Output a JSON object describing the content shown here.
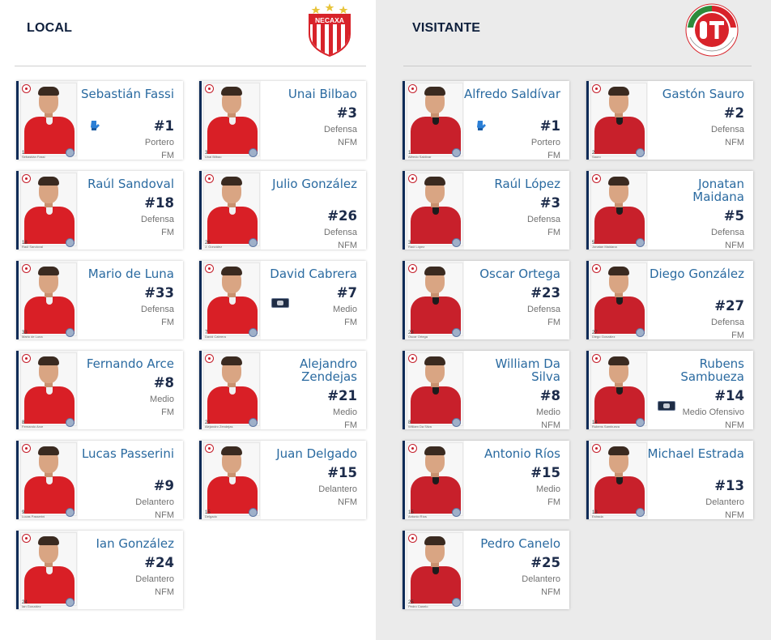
{
  "local": {
    "title": "LOCAL",
    "logo_name": "necaxa-crest",
    "logo_text": "NECAXA",
    "players": [
      {
        "name": "Sebastián Fassi",
        "number": "#1",
        "position": "Portero",
        "status": "FM",
        "photo_num": "1",
        "photo_name": "Sebastián Fassi",
        "icon": "goalkeeper-gloves-icon"
      },
      {
        "name": "Unai Bilbao",
        "number": "#3",
        "position": "Defensa",
        "status": "NFM",
        "photo_num": "3",
        "photo_name": "Unai Bilbao",
        "icon": ""
      },
      {
        "name": "Raúl Sandoval",
        "number": "#18",
        "position": "Defensa",
        "status": "FM",
        "photo_num": "18",
        "photo_name": "Raúl Sandoval",
        "icon": ""
      },
      {
        "name": "Julio González",
        "number": "#26",
        "position": "Defensa",
        "status": "NFM",
        "photo_num": "26",
        "photo_name": "J. González",
        "icon": ""
      },
      {
        "name": "Mario de Luna",
        "number": "#33",
        "position": "Defensa",
        "status": "FM",
        "photo_num": "33",
        "photo_name": "Mario de Luna",
        "icon": ""
      },
      {
        "name": "David Cabrera",
        "number": "#7",
        "position": "Medio",
        "status": "FM",
        "photo_num": "7",
        "photo_name": "David Cabrera",
        "icon": "captain-armband-icon"
      },
      {
        "name": "Fernando Arce",
        "number": "#8",
        "position": "Medio",
        "status": "FM",
        "photo_num": "8",
        "photo_name": "Fernando Arce",
        "icon": ""
      },
      {
        "name": "Alejandro Zendejas",
        "number": "#21",
        "position": "Medio",
        "status": "FM",
        "photo_num": "21",
        "photo_name": "Alejandro Zendejas",
        "icon": ""
      },
      {
        "name": "Lucas Passerini",
        "number": "#9",
        "position": "Delantero",
        "status": "NFM",
        "photo_num": "9",
        "photo_name": "Lucas Passerini",
        "icon": ""
      },
      {
        "name": "Juan Delgado",
        "number": "#15",
        "position": "Delantero",
        "status": "NFM",
        "photo_num": "15",
        "photo_name": "Delgado",
        "icon": ""
      },
      {
        "name": "Ian González",
        "number": "#24",
        "position": "Delantero",
        "status": "NFM",
        "photo_num": "24",
        "photo_name": "Ian González",
        "icon": ""
      }
    ]
  },
  "away": {
    "title": "VISITANTE",
    "logo_name": "club-deportivo-toluca-crest",
    "logo_text": "CLUB DEPORTIVO",
    "players": [
      {
        "name": "Alfredo Saldívar",
        "number": "#1",
        "position": "Portero",
        "status": "FM",
        "photo_num": "1",
        "photo_name": "Alfredo Saldívar",
        "icon": "goalkeeper-gloves-icon"
      },
      {
        "name": "Gastón Sauro",
        "number": "#2",
        "position": "Defensa",
        "status": "NFM",
        "photo_num": "2",
        "photo_name": "Sauro",
        "icon": ""
      },
      {
        "name": "Raúl López",
        "number": "#3",
        "position": "Defensa",
        "status": "FM",
        "photo_num": "3",
        "photo_name": "Raúl López",
        "icon": ""
      },
      {
        "name": "Jonatan Maidana",
        "number": "#5",
        "position": "Defensa",
        "status": "NFM",
        "photo_num": "5",
        "photo_name": "Jonatan Maidana",
        "icon": ""
      },
      {
        "name": "Oscar Ortega",
        "number": "#23",
        "position": "Defensa",
        "status": "FM",
        "photo_num": "23",
        "photo_name": "Oscar Ortega",
        "icon": ""
      },
      {
        "name": "Diego González",
        "number": "#27",
        "position": "Defensa",
        "status": "FM",
        "photo_num": "27",
        "photo_name": "Diego González",
        "icon": ""
      },
      {
        "name": "William Da Silva",
        "number": "#8",
        "position": "Medio",
        "status": "NFM",
        "photo_num": "8",
        "photo_name": "William Da Silva",
        "icon": ""
      },
      {
        "name": "Rubens Sambueza",
        "number": "#14",
        "position": "Medio Ofensivo",
        "status": "NFM",
        "photo_num": "14",
        "photo_name": "Rubens Sambueza",
        "icon": "captain-armband-icon"
      },
      {
        "name": "Antonio Ríos",
        "number": "#15",
        "position": "Medio",
        "status": "FM",
        "photo_num": "15",
        "photo_name": "Antonio Ríos",
        "icon": ""
      },
      {
        "name": "Michael Estrada",
        "number": "#13",
        "position": "Delantero",
        "status": "NFM",
        "photo_num": "13",
        "photo_name": "Estrada",
        "icon": ""
      },
      {
        "name": "Pedro Canelo",
        "number": "#25",
        "position": "Delantero",
        "status": "NFM",
        "photo_num": "25",
        "photo_name": "Pedro Canelo",
        "icon": ""
      }
    ]
  }
}
